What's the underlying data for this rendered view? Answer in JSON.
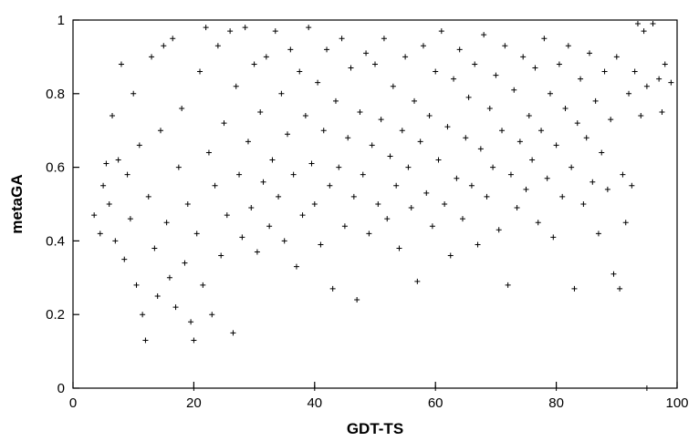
{
  "chart_data": {
    "type": "scatter",
    "title": "",
    "xlabel": "GDT-TS",
    "ylabel": "metaGA",
    "xlim": [
      0,
      100
    ],
    "ylim": [
      0,
      1
    ],
    "x_ticks": [
      "0",
      "20",
      "40",
      "60",
      "80",
      "100"
    ],
    "y_ticks": [
      "0",
      "0.2",
      "0.4",
      "0.6",
      "0.8",
      "1"
    ],
    "grid": false,
    "legend": "none",
    "marker": "plus",
    "marker_color": "#000000",
    "series": [
      {
        "points": [
          [
            3.5,
            0.47
          ],
          [
            4.5,
            0.42
          ],
          [
            5.0,
            0.55
          ],
          [
            5.5,
            0.61
          ],
          [
            6.0,
            0.5
          ],
          [
            6.5,
            0.74
          ],
          [
            7.0,
            0.4
          ],
          [
            7.5,
            0.62
          ],
          [
            8.0,
            0.88
          ],
          [
            8.5,
            0.35
          ],
          [
            9.0,
            0.58
          ],
          [
            9.5,
            0.46
          ],
          [
            10.0,
            0.8
          ],
          [
            10.5,
            0.28
          ],
          [
            11.0,
            0.66
          ],
          [
            11.5,
            0.2
          ],
          [
            12.0,
            0.13
          ],
          [
            12.5,
            0.52
          ],
          [
            13.0,
            0.9
          ],
          [
            13.5,
            0.38
          ],
          [
            14.0,
            0.25
          ],
          [
            14.5,
            0.7
          ],
          [
            15.0,
            0.93
          ],
          [
            15.5,
            0.45
          ],
          [
            16.0,
            0.3
          ],
          [
            16.5,
            0.95
          ],
          [
            17.0,
            0.22
          ],
          [
            17.5,
            0.6
          ],
          [
            18.0,
            0.76
          ],
          [
            18.5,
            0.34
          ],
          [
            19.0,
            0.5
          ],
          [
            19.5,
            0.18
          ],
          [
            20.0,
            0.13
          ],
          [
            20.5,
            0.42
          ],
          [
            21.0,
            0.86
          ],
          [
            21.5,
            0.28
          ],
          [
            22.0,
            0.98
          ],
          [
            22.5,
            0.64
          ],
          [
            23.0,
            0.2
          ],
          [
            23.5,
            0.55
          ],
          [
            24.0,
            0.93
          ],
          [
            24.5,
            0.36
          ],
          [
            25.0,
            0.72
          ],
          [
            25.5,
            0.47
          ],
          [
            26.0,
            0.97
          ],
          [
            26.5,
            0.15
          ],
          [
            27.0,
            0.82
          ],
          [
            27.5,
            0.58
          ],
          [
            28.0,
            0.41
          ],
          [
            28.5,
            0.98
          ],
          [
            29.0,
            0.67
          ],
          [
            29.5,
            0.49
          ],
          [
            30.0,
            0.88
          ],
          [
            30.5,
            0.37
          ],
          [
            31.0,
            0.75
          ],
          [
            31.5,
            0.56
          ],
          [
            32.0,
            0.9
          ],
          [
            32.5,
            0.44
          ],
          [
            33.0,
            0.62
          ],
          [
            33.5,
            0.97
          ],
          [
            34.0,
            0.52
          ],
          [
            34.5,
            0.8
          ],
          [
            35.0,
            0.4
          ],
          [
            35.5,
            0.69
          ],
          [
            36.0,
            0.92
          ],
          [
            36.5,
            0.58
          ],
          [
            37.0,
            0.33
          ],
          [
            37.5,
            0.86
          ],
          [
            38.0,
            0.47
          ],
          [
            38.5,
            0.74
          ],
          [
            39.0,
            0.98
          ],
          [
            39.5,
            0.61
          ],
          [
            40.0,
            0.5
          ],
          [
            40.5,
            0.83
          ],
          [
            41.0,
            0.39
          ],
          [
            41.5,
            0.7
          ],
          [
            42.0,
            0.92
          ],
          [
            42.5,
            0.55
          ],
          [
            43.0,
            0.27
          ],
          [
            43.5,
            0.78
          ],
          [
            44.0,
            0.6
          ],
          [
            44.5,
            0.95
          ],
          [
            45.0,
            0.44
          ],
          [
            45.5,
            0.68
          ],
          [
            46.0,
            0.87
          ],
          [
            46.5,
            0.52
          ],
          [
            47.0,
            0.24
          ],
          [
            47.5,
            0.75
          ],
          [
            48.0,
            0.58
          ],
          [
            48.5,
            0.91
          ],
          [
            49.0,
            0.42
          ],
          [
            49.5,
            0.66
          ],
          [
            50.0,
            0.88
          ],
          [
            50.5,
            0.5
          ],
          [
            51.0,
            0.73
          ],
          [
            51.5,
            0.95
          ],
          [
            52.0,
            0.46
          ],
          [
            52.5,
            0.63
          ],
          [
            53.0,
            0.82
          ],
          [
            53.5,
            0.55
          ],
          [
            54.0,
            0.38
          ],
          [
            54.5,
            0.7
          ],
          [
            55.0,
            0.9
          ],
          [
            55.5,
            0.6
          ],
          [
            56.0,
            0.49
          ],
          [
            56.5,
            0.78
          ],
          [
            57.0,
            0.29
          ],
          [
            57.5,
            0.67
          ],
          [
            58.0,
            0.93
          ],
          [
            58.5,
            0.53
          ],
          [
            59.0,
            0.74
          ],
          [
            59.5,
            0.44
          ],
          [
            60.0,
            0.86
          ],
          [
            60.5,
            0.62
          ],
          [
            61.0,
            0.97
          ],
          [
            61.5,
            0.5
          ],
          [
            62.0,
            0.71
          ],
          [
            62.5,
            0.36
          ],
          [
            63.0,
            0.84
          ],
          [
            63.5,
            0.57
          ],
          [
            64.0,
            0.92
          ],
          [
            64.5,
            0.46
          ],
          [
            65.0,
            0.68
          ],
          [
            65.5,
            0.79
          ],
          [
            66.0,
            0.55
          ],
          [
            66.5,
            0.88
          ],
          [
            67.0,
            0.39
          ],
          [
            67.5,
            0.65
          ],
          [
            68.0,
            0.96
          ],
          [
            68.5,
            0.52
          ],
          [
            69.0,
            0.76
          ],
          [
            69.5,
            0.6
          ],
          [
            70.0,
            0.85
          ],
          [
            70.5,
            0.43
          ],
          [
            71.0,
            0.7
          ],
          [
            71.5,
            0.93
          ],
          [
            72.0,
            0.28
          ],
          [
            72.5,
            0.58
          ],
          [
            73.0,
            0.81
          ],
          [
            73.5,
            0.49
          ],
          [
            74.0,
            0.67
          ],
          [
            74.5,
            0.9
          ],
          [
            75.0,
            0.54
          ],
          [
            75.5,
            0.74
          ],
          [
            76.0,
            0.62
          ],
          [
            76.5,
            0.87
          ],
          [
            77.0,
            0.45
          ],
          [
            77.5,
            0.7
          ],
          [
            78.0,
            0.95
          ],
          [
            78.5,
            0.57
          ],
          [
            79.0,
            0.8
          ],
          [
            79.5,
            0.41
          ],
          [
            80.0,
            0.66
          ],
          [
            80.5,
            0.88
          ],
          [
            81.0,
            0.52
          ],
          [
            81.5,
            0.76
          ],
          [
            82.0,
            0.93
          ],
          [
            82.5,
            0.6
          ],
          [
            83.0,
            0.27
          ],
          [
            83.5,
            0.72
          ],
          [
            84.0,
            0.84
          ],
          [
            84.5,
            0.5
          ],
          [
            85.0,
            0.68
          ],
          [
            85.5,
            0.91
          ],
          [
            86.0,
            0.56
          ],
          [
            86.5,
            0.78
          ],
          [
            87.0,
            0.42
          ],
          [
            87.5,
            0.64
          ],
          [
            88.0,
            0.86
          ],
          [
            88.5,
            0.54
          ],
          [
            89.0,
            0.73
          ],
          [
            89.5,
            0.31
          ],
          [
            90.0,
            0.9
          ],
          [
            90.5,
            0.27
          ],
          [
            91.0,
            0.58
          ],
          [
            91.5,
            0.45
          ],
          [
            92.0,
            0.8
          ],
          [
            92.5,
            0.55
          ],
          [
            93.0,
            0.86
          ],
          [
            93.5,
            0.99
          ],
          [
            94.0,
            0.74
          ],
          [
            94.5,
            0.97
          ],
          [
            95.0,
            0.82
          ],
          [
            96.0,
            0.99
          ],
          [
            97.0,
            0.84
          ],
          [
            97.5,
            0.75
          ],
          [
            98.0,
            0.88
          ],
          [
            99.0,
            0.83
          ],
          [
            20.0,
            0.0
          ],
          [
            40.0,
            0.0
          ],
          [
            60.0,
            0.0
          ],
          [
            80.0,
            0.0
          ],
          [
            95.0,
            0.0
          ]
        ]
      }
    ]
  }
}
